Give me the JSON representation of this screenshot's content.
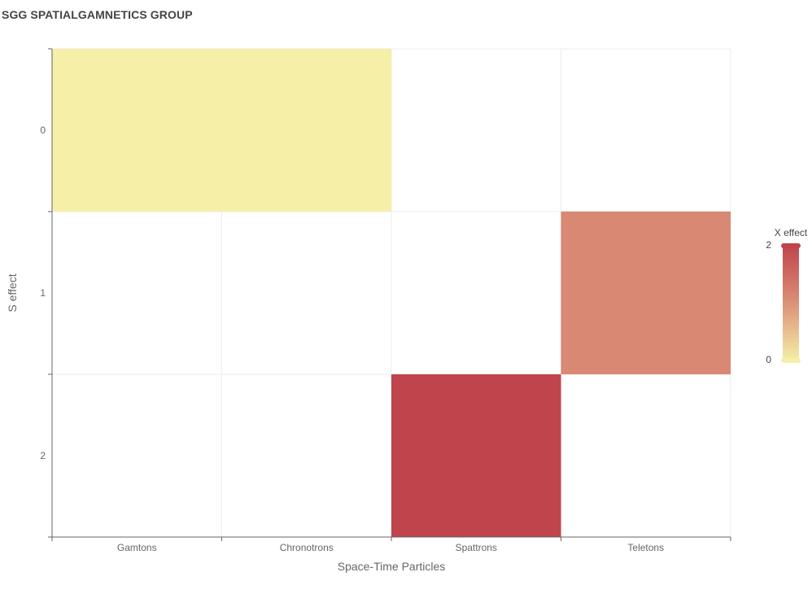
{
  "title": "SGG SPATIALGAMNETICS GROUP",
  "chart_data": {
    "type": "heatmap",
    "title": "SGG SPATIALGAMNETICS GROUP",
    "xlabel": "Space-Time Particles",
    "ylabel": "S effect",
    "x_categories": [
      "Gamtons",
      "Chronotrons",
      "Spattrons",
      "Teletons"
    ],
    "y_categories": [
      "0",
      "1",
      "2"
    ],
    "cells": [
      {
        "x": "Gamtons",
        "y": "0",
        "value": 0
      },
      {
        "x": "Chronotrons",
        "y": "0",
        "value": 0
      },
      {
        "x": "Teletons",
        "y": "1",
        "value": 1.5
      },
      {
        "x": "Spattrons",
        "y": "2",
        "value": 2
      }
    ],
    "color_scale": {
      "title": "X effect",
      "min": 0,
      "max": 2,
      "min_color": "#f5efa8",
      "mid_color": "#d98873",
      "max_color": "#bf444c"
    },
    "grid": true,
    "legend_position": "right"
  }
}
